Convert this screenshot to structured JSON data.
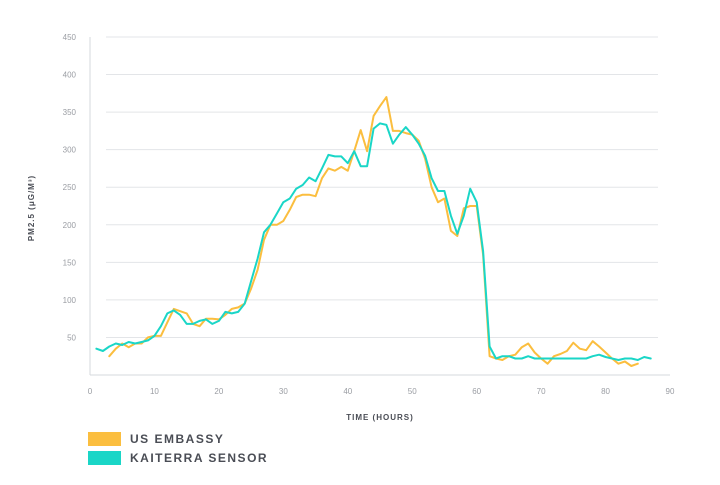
{
  "chart_data": {
    "type": "line",
    "xlabel": "TIME (HOURS)",
    "ylabel": "PM2.5 (μG/M³)",
    "xlim": [
      0,
      90
    ],
    "ylim": [
      0,
      450
    ],
    "x_ticks": [
      0,
      10,
      20,
      30,
      40,
      50,
      60,
      70,
      80,
      90
    ],
    "y_ticks": [
      50,
      100,
      150,
      200,
      250,
      300,
      350,
      400,
      450
    ],
    "grid": true,
    "legend_position": "bottom-left",
    "series": [
      {
        "name": "US EMBASSY",
        "color": "#fbbe3f",
        "points": [
          [
            3,
            25
          ],
          [
            4,
            35
          ],
          [
            5,
            42
          ],
          [
            6,
            37
          ],
          [
            7,
            42
          ],
          [
            8,
            42
          ],
          [
            9,
            50
          ],
          [
            10,
            52
          ],
          [
            11,
            52
          ],
          [
            12,
            70
          ],
          [
            13,
            88
          ],
          [
            14,
            85
          ],
          [
            15,
            82
          ],
          [
            16,
            68
          ],
          [
            17,
            65
          ],
          [
            18,
            75
          ],
          [
            19,
            75
          ],
          [
            20,
            74
          ],
          [
            21,
            80
          ],
          [
            22,
            88
          ],
          [
            23,
            90
          ],
          [
            24,
            95
          ],
          [
            25,
            115
          ],
          [
            26,
            140
          ],
          [
            27,
            180
          ],
          [
            28,
            200
          ],
          [
            29,
            200
          ],
          [
            30,
            205
          ],
          [
            31,
            220
          ],
          [
            32,
            237
          ],
          [
            33,
            240
          ],
          [
            34,
            240
          ],
          [
            35,
            238
          ],
          [
            36,
            262
          ],
          [
            37,
            275
          ],
          [
            38,
            272
          ],
          [
            39,
            277
          ],
          [
            40,
            272
          ],
          [
            41,
            298
          ],
          [
            42,
            326
          ],
          [
            43,
            298
          ],
          [
            44,
            345
          ],
          [
            45,
            358
          ],
          [
            46,
            370
          ],
          [
            47,
            325
          ],
          [
            48,
            325
          ],
          [
            49,
            322
          ],
          [
            50,
            320
          ],
          [
            51,
            312
          ],
          [
            52,
            288
          ],
          [
            53,
            250
          ],
          [
            54,
            230
          ],
          [
            55,
            235
          ],
          [
            56,
            192
          ],
          [
            57,
            185
          ],
          [
            58,
            222
          ],
          [
            59,
            225
          ],
          [
            60,
            225
          ],
          [
            61,
            160
          ],
          [
            62,
            25
          ],
          [
            63,
            22
          ],
          [
            64,
            20
          ],
          [
            65,
            25
          ],
          [
            66,
            27
          ],
          [
            67,
            37
          ],
          [
            68,
            42
          ],
          [
            69,
            30
          ],
          [
            70,
            22
          ],
          [
            71,
            15
          ],
          [
            72,
            25
          ],
          [
            73,
            28
          ],
          [
            74,
            32
          ],
          [
            75,
            43
          ],
          [
            76,
            35
          ],
          [
            77,
            33
          ],
          [
            78,
            45
          ],
          [
            79,
            38
          ],
          [
            80,
            30
          ],
          [
            81,
            22
          ],
          [
            82,
            15
          ],
          [
            83,
            18
          ],
          [
            84,
            12
          ],
          [
            85,
            15
          ]
        ]
      },
      {
        "name": "KAITERRA SENSOR",
        "color": "#1ad6c7",
        "points": [
          [
            1,
            35
          ],
          [
            2,
            32
          ],
          [
            3,
            38
          ],
          [
            4,
            42
          ],
          [
            5,
            40
          ],
          [
            6,
            44
          ],
          [
            7,
            42
          ],
          [
            8,
            44
          ],
          [
            9,
            46
          ],
          [
            10,
            52
          ],
          [
            11,
            65
          ],
          [
            12,
            82
          ],
          [
            13,
            86
          ],
          [
            14,
            80
          ],
          [
            15,
            68
          ],
          [
            16,
            68
          ],
          [
            17,
            72
          ],
          [
            18,
            74
          ],
          [
            19,
            68
          ],
          [
            20,
            72
          ],
          [
            21,
            84
          ],
          [
            22,
            82
          ],
          [
            23,
            84
          ],
          [
            24,
            95
          ],
          [
            25,
            125
          ],
          [
            26,
            155
          ],
          [
            27,
            190
          ],
          [
            28,
            200
          ],
          [
            29,
            215
          ],
          [
            30,
            230
          ],
          [
            31,
            235
          ],
          [
            32,
            248
          ],
          [
            33,
            253
          ],
          [
            34,
            263
          ],
          [
            35,
            258
          ],
          [
            36,
            275
          ],
          [
            37,
            293
          ],
          [
            38,
            291
          ],
          [
            39,
            291
          ],
          [
            40,
            282
          ],
          [
            41,
            298
          ],
          [
            42,
            278
          ],
          [
            43,
            278
          ],
          [
            44,
            328
          ],
          [
            45,
            335
          ],
          [
            46,
            333
          ],
          [
            47,
            308
          ],
          [
            48,
            320
          ],
          [
            49,
            330
          ],
          [
            50,
            320
          ],
          [
            51,
            308
          ],
          [
            52,
            292
          ],
          [
            53,
            262
          ],
          [
            54,
            245
          ],
          [
            55,
            245
          ],
          [
            56,
            212
          ],
          [
            57,
            188
          ],
          [
            58,
            212
          ],
          [
            59,
            248
          ],
          [
            60,
            230
          ],
          [
            61,
            165
          ],
          [
            62,
            38
          ],
          [
            63,
            22
          ],
          [
            64,
            25
          ],
          [
            65,
            25
          ],
          [
            66,
            22
          ],
          [
            67,
            22
          ],
          [
            68,
            25
          ],
          [
            69,
            22
          ],
          [
            70,
            22
          ],
          [
            71,
            22
          ],
          [
            72,
            22
          ],
          [
            73,
            22
          ],
          [
            74,
            22
          ],
          [
            75,
            22
          ],
          [
            76,
            22
          ],
          [
            77,
            22
          ],
          [
            78,
            25
          ],
          [
            79,
            27
          ],
          [
            80,
            24
          ],
          [
            81,
            22
          ],
          [
            82,
            20
          ],
          [
            83,
            22
          ],
          [
            84,
            22
          ],
          [
            85,
            20
          ],
          [
            86,
            24
          ],
          [
            87,
            22
          ]
        ]
      }
    ]
  }
}
